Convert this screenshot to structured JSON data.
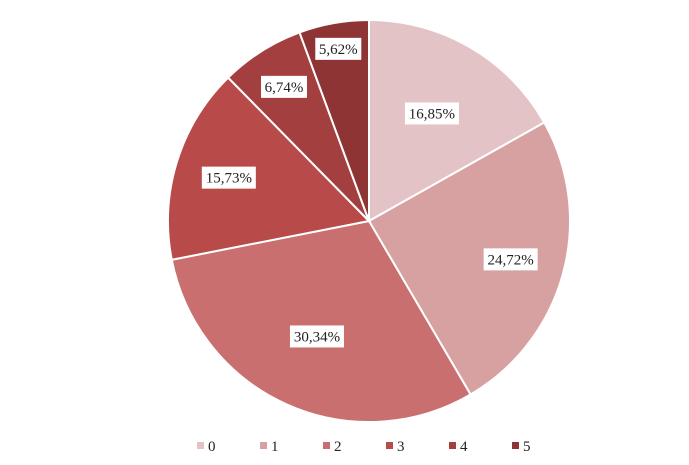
{
  "chart_data": {
    "type": "pie",
    "categories": [
      "0",
      "1",
      "2",
      "3",
      "4",
      "5"
    ],
    "values": [
      16.85,
      24.72,
      30.34,
      15.73,
      6.74,
      5.62
    ],
    "data_labels": [
      "16,85%",
      "24,72%",
      "30,34%",
      "15,73%",
      "6,74%",
      "5,62%"
    ],
    "colors": [
      "#E3C3C5",
      "#D7A1A2",
      "#C96F6F",
      "#B84A4A",
      "#A43F3F",
      "#8E3434"
    ],
    "start_angle_deg": 0,
    "direction": "clockwise",
    "legend_position": "bottom"
  }
}
